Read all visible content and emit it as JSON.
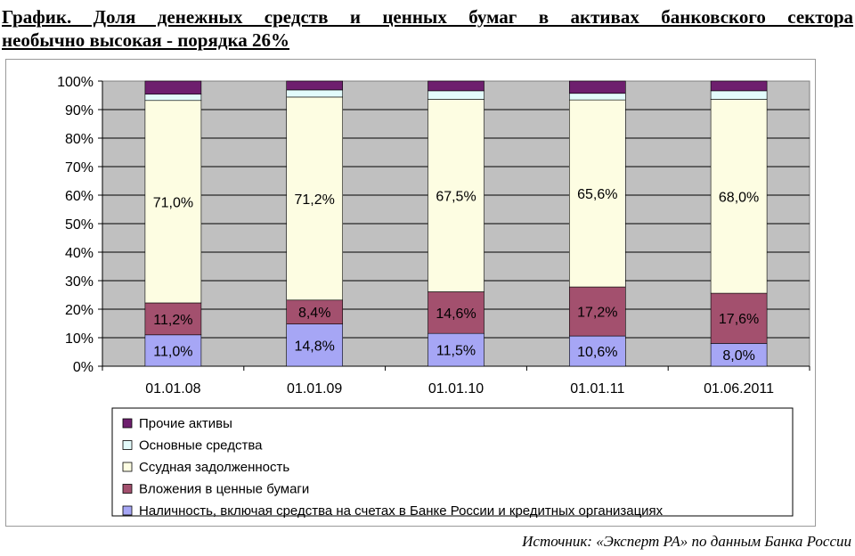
{
  "title": {
    "line1": "График. Доля денежных средств и ценных бумаг в активах банковского сектора",
    "line2": "необычно высокая - порядка 26%"
  },
  "source": "Источник: «Эксперт РА» по данным Банка России",
  "chart_data": {
    "type": "bar",
    "stacked": "percent",
    "categories": [
      "01.01.08",
      "01.01.09",
      "01.01.10",
      "01.01.11",
      "01.06.2011"
    ],
    "series": [
      {
        "name": "Наличность, включая средства на счетах в Банке России и кредитных организациях",
        "color": "#a6a6f5",
        "values": [
          11.0,
          14.8,
          11.5,
          10.6,
          8.0
        ],
        "labels": [
          "11,0%",
          "14,8%",
          "11,5%",
          "10,6%",
          "8,0%"
        ]
      },
      {
        "name": "Вложения в ценные бумаги",
        "color": "#a3506e",
        "values": [
          11.2,
          8.4,
          14.6,
          17.2,
          17.6
        ],
        "labels": [
          "11,2%",
          "8,4%",
          "14,6%",
          "17,2%",
          "17,6%"
        ]
      },
      {
        "name": "Ссудная задолженность",
        "color": "#fdfde2",
        "values": [
          71.0,
          71.2,
          67.5,
          65.6,
          68.0
        ],
        "labels": [
          "71,0%",
          "71,2%",
          "67,5%",
          "65,6%",
          "68,0%"
        ]
      },
      {
        "name": "Основные средства",
        "color": "#e3fbfb",
        "values": [
          2.2,
          2.5,
          3.0,
          2.3,
          3.0
        ],
        "labels": []
      },
      {
        "name": "Прочие активы",
        "color": "#6e1f6e",
        "values": [
          4.6,
          3.1,
          3.4,
          4.3,
          3.4
        ],
        "labels": []
      }
    ],
    "ylim": [
      0,
      100
    ],
    "yticks": [
      "0%",
      "10%",
      "20%",
      "30%",
      "40%",
      "50%",
      "60%",
      "70%",
      "80%",
      "90%",
      "100%"
    ],
    "grid": true,
    "legend_position": "bottom",
    "legend_order": [
      "Прочие активы",
      "Основные средства",
      "Ссудная задолженность",
      "Вложения в ценные бумаги",
      "Наличность, включая средства на счетах в Банке России и кредитных организациях"
    ],
    "plot_background": "#c0c0c0"
  }
}
